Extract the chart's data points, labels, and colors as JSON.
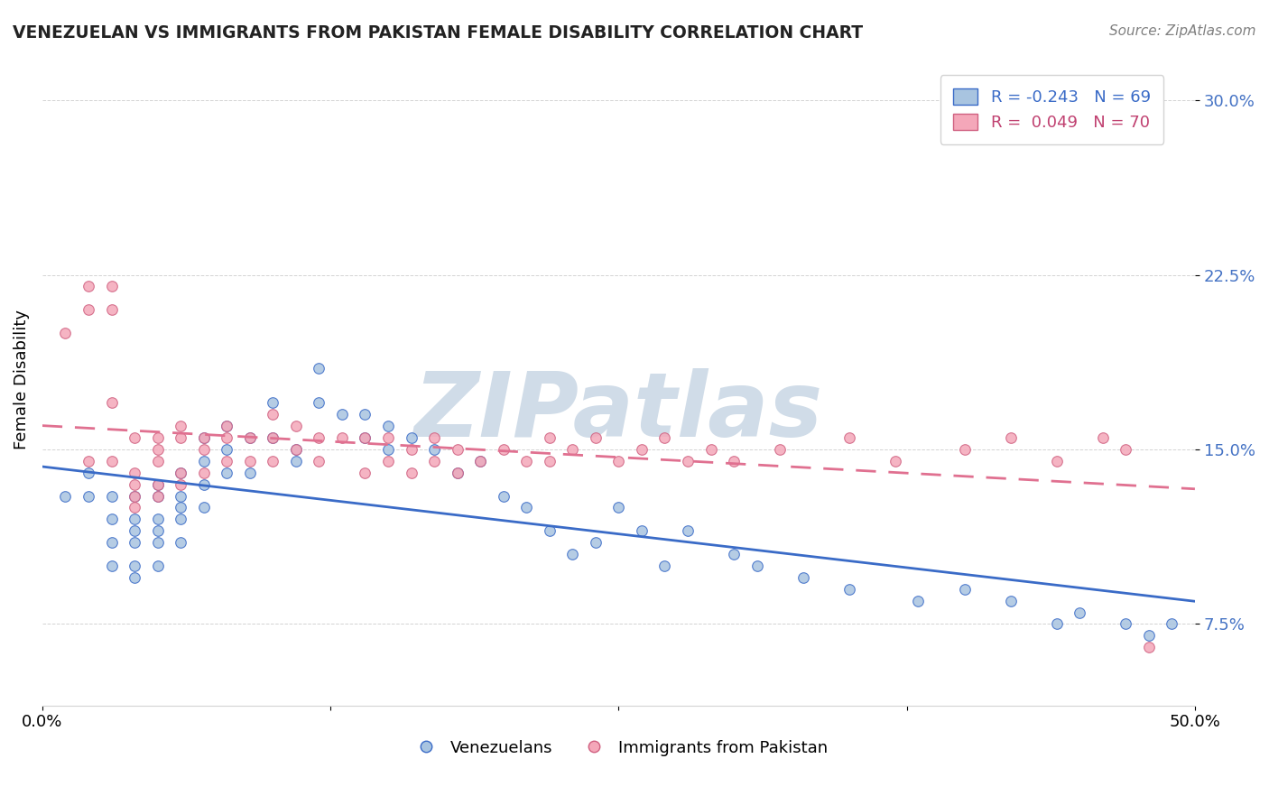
{
  "title": "VENEZUELAN VS IMMIGRANTS FROM PAKISTAN FEMALE DISABILITY CORRELATION CHART",
  "source_text": "Source: ZipAtlas.com",
  "ylabel": "Female Disability",
  "x_min": 0.0,
  "x_max": 0.5,
  "y_min": 0.04,
  "y_max": 0.32,
  "y_ticks": [
    0.075,
    0.15,
    0.225,
    0.3
  ],
  "y_tick_labels": [
    "7.5%",
    "15.0%",
    "22.5%",
    "30.0%"
  ],
  "x_ticks": [
    0.0,
    0.125,
    0.25,
    0.375,
    0.5
  ],
  "x_tick_labels": [
    "0.0%",
    "",
    "",
    "",
    "50.0%"
  ],
  "legend_blue_label": "R = -0.243   N = 69",
  "legend_pink_label": "R =  0.049   N = 70",
  "legend_blue_text_color": "#3a6bc7",
  "legend_pink_text_color": "#c04070",
  "scatter_blue_color": "#a8c4e0",
  "scatter_pink_color": "#f4a7b9",
  "scatter_blue_edge": "#3a6bc7",
  "scatter_pink_edge": "#d06080",
  "line_blue_color": "#3a6bc7",
  "line_pink_color": "#e07090",
  "watermark_text": "ZIPatlas",
  "watermark_color": "#d0dce8",
  "bottom_legend_blue": "Venezuelans",
  "bottom_legend_pink": "Immigrants from Pakistan",
  "ytick_color": "#4472c4",
  "venezuelan_x": [
    0.01,
    0.02,
    0.02,
    0.03,
    0.03,
    0.03,
    0.03,
    0.04,
    0.04,
    0.04,
    0.04,
    0.04,
    0.04,
    0.05,
    0.05,
    0.05,
    0.05,
    0.05,
    0.05,
    0.06,
    0.06,
    0.06,
    0.06,
    0.06,
    0.07,
    0.07,
    0.07,
    0.07,
    0.08,
    0.08,
    0.08,
    0.09,
    0.09,
    0.1,
    0.1,
    0.11,
    0.11,
    0.12,
    0.12,
    0.13,
    0.14,
    0.14,
    0.15,
    0.15,
    0.16,
    0.17,
    0.18,
    0.19,
    0.2,
    0.21,
    0.22,
    0.23,
    0.24,
    0.25,
    0.26,
    0.27,
    0.28,
    0.3,
    0.31,
    0.33,
    0.35,
    0.38,
    0.4,
    0.42,
    0.44,
    0.45,
    0.47,
    0.48,
    0.49
  ],
  "venezuelan_y": [
    0.13,
    0.14,
    0.13,
    0.13,
    0.12,
    0.11,
    0.1,
    0.13,
    0.12,
    0.115,
    0.11,
    0.1,
    0.095,
    0.135,
    0.13,
    0.12,
    0.115,
    0.11,
    0.1,
    0.14,
    0.13,
    0.125,
    0.12,
    0.11,
    0.155,
    0.145,
    0.135,
    0.125,
    0.16,
    0.15,
    0.14,
    0.155,
    0.14,
    0.17,
    0.155,
    0.15,
    0.145,
    0.185,
    0.17,
    0.165,
    0.165,
    0.155,
    0.16,
    0.15,
    0.155,
    0.15,
    0.14,
    0.145,
    0.13,
    0.125,
    0.115,
    0.105,
    0.11,
    0.125,
    0.115,
    0.1,
    0.115,
    0.105,
    0.1,
    0.095,
    0.09,
    0.085,
    0.09,
    0.085,
    0.075,
    0.08,
    0.075,
    0.07,
    0.075
  ],
  "pakistan_x": [
    0.01,
    0.02,
    0.02,
    0.02,
    0.03,
    0.03,
    0.03,
    0.03,
    0.04,
    0.04,
    0.04,
    0.04,
    0.04,
    0.05,
    0.05,
    0.05,
    0.05,
    0.05,
    0.06,
    0.06,
    0.06,
    0.06,
    0.07,
    0.07,
    0.07,
    0.08,
    0.08,
    0.08,
    0.09,
    0.09,
    0.1,
    0.1,
    0.1,
    0.11,
    0.11,
    0.12,
    0.12,
    0.13,
    0.14,
    0.14,
    0.15,
    0.15,
    0.16,
    0.16,
    0.17,
    0.17,
    0.18,
    0.18,
    0.19,
    0.2,
    0.21,
    0.22,
    0.22,
    0.23,
    0.24,
    0.25,
    0.26,
    0.27,
    0.28,
    0.29,
    0.3,
    0.32,
    0.35,
    0.37,
    0.4,
    0.42,
    0.44,
    0.46,
    0.47,
    0.48
  ],
  "pakistan_y": [
    0.2,
    0.22,
    0.21,
    0.145,
    0.22,
    0.21,
    0.17,
    0.145,
    0.155,
    0.14,
    0.135,
    0.13,
    0.125,
    0.155,
    0.15,
    0.145,
    0.135,
    0.13,
    0.16,
    0.155,
    0.14,
    0.135,
    0.155,
    0.15,
    0.14,
    0.16,
    0.155,
    0.145,
    0.155,
    0.145,
    0.165,
    0.155,
    0.145,
    0.16,
    0.15,
    0.155,
    0.145,
    0.155,
    0.155,
    0.14,
    0.155,
    0.145,
    0.15,
    0.14,
    0.155,
    0.145,
    0.15,
    0.14,
    0.145,
    0.15,
    0.145,
    0.155,
    0.145,
    0.15,
    0.155,
    0.145,
    0.15,
    0.155,
    0.145,
    0.15,
    0.145,
    0.15,
    0.155,
    0.145,
    0.15,
    0.155,
    0.145,
    0.155,
    0.15,
    0.065
  ]
}
